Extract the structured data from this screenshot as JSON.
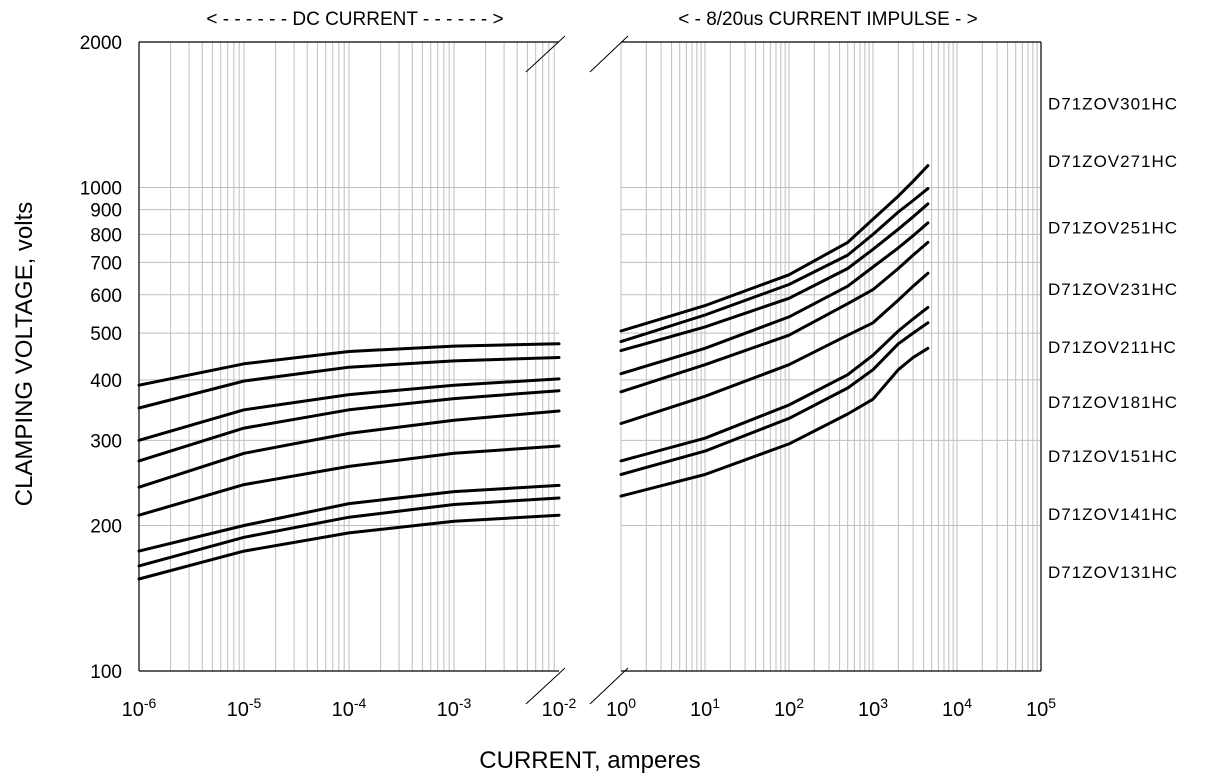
{
  "chart_data": {
    "type": "line",
    "title": "",
    "xlabel": "CURRENT, amperes",
    "ylabel": "CLAMPING VOLTAGE, volts",
    "y_scale": "log",
    "ylim": [
      100,
      2000
    ],
    "y_ticks": [
      {
        "value": 100,
        "label": "100"
      },
      {
        "value": 200,
        "label": "200"
      },
      {
        "value": 300,
        "label": "300"
      },
      {
        "value": 400,
        "label": "400"
      },
      {
        "value": 500,
        "label": "500"
      },
      {
        "value": 600,
        "label": "600"
      },
      {
        "value": 700,
        "label": "700"
      },
      {
        "value": 800,
        "label": "800"
      },
      {
        "value": 900,
        "label": "900"
      },
      {
        "value": 1000,
        "label": "1000"
      },
      {
        "value": 2000,
        "label": "2000"
      }
    ],
    "sections": [
      {
        "name": "DC CURRENT",
        "header": "< - - - - - - DC CURRENT - - - - - - >",
        "x_scale": "log",
        "xlim": [
          1e-06,
          0.01
        ],
        "x_ticks": [
          {
            "value": 1e-06,
            "base": "10",
            "exp": "-6"
          },
          {
            "value": 1e-05,
            "base": "10",
            "exp": "-5"
          },
          {
            "value": 0.0001,
            "base": "10",
            "exp": "-4"
          },
          {
            "value": 0.001,
            "base": "10",
            "exp": "-3"
          },
          {
            "value": 0.01,
            "base": "10",
            "exp": "-2"
          }
        ]
      },
      {
        "name": "8/20us CURRENT IMPULSE",
        "header": "< - 8/20us CURRENT IMPULSE - >",
        "x_scale": "log",
        "xlim": [
          1,
          100000
        ],
        "x_ticks": [
          {
            "value": 1,
            "base": "10",
            "exp": "0"
          },
          {
            "value": 10,
            "base": "10",
            "exp": "1"
          },
          {
            "value": 100,
            "base": "10",
            "exp": "2"
          },
          {
            "value": 1000,
            "base": "10",
            "exp": "3"
          },
          {
            "value": 10000,
            "base": "10",
            "exp": "4"
          },
          {
            "value": 100000,
            "base": "10",
            "exp": "5"
          }
        ]
      }
    ],
    "series": [
      {
        "name": "D71ZOV301HC",
        "label_voltage": 1500,
        "dc": {
          "x": [
            1e-06,
            1e-05,
            0.0001,
            0.001,
            0.01
          ],
          "y": [
            390,
            432,
            458,
            470,
            475
          ]
        },
        "impulse": {
          "x": [
            1,
            10,
            100,
            500,
            1000,
            2000,
            3000,
            4500
          ],
          "y": [
            505,
            570,
            660,
            770,
            860,
            960,
            1030,
            1110
          ]
        }
      },
      {
        "name": "D71ZOV271HC",
        "label_voltage": 1140,
        "dc": {
          "x": [
            1e-06,
            1e-05,
            0.0001,
            0.001,
            0.01
          ],
          "y": [
            350,
            398,
            425,
            438,
            445
          ]
        },
        "impulse": {
          "x": [
            1,
            10,
            100,
            500,
            1000,
            2000,
            3000,
            4500
          ],
          "y": [
            480,
            545,
            630,
            725,
            800,
            890,
            940,
            995
          ]
        }
      },
      {
        "name": "D71ZOV251HC",
        "label_voltage": 830,
        "dc": {
          "x": [
            1e-06,
            1e-05,
            0.0001,
            0.001,
            0.01
          ],
          "y": [
            300,
            347,
            373,
            390,
            402
          ]
        },
        "impulse": {
          "x": [
            1,
            10,
            100,
            500,
            1000,
            2000,
            3000,
            4500
          ],
          "y": [
            460,
            515,
            590,
            680,
            745,
            820,
            870,
            925
          ]
        }
      },
      {
        "name": "D71ZOV231HC",
        "label_voltage": 620,
        "dc": {
          "x": [
            1e-06,
            1e-05,
            0.0001,
            0.001,
            0.01
          ],
          "y": [
            272,
            318,
            347,
            366,
            380
          ]
        },
        "impulse": {
          "x": [
            1,
            10,
            100,
            500,
            1000,
            2000,
            3000,
            4500
          ],
          "y": [
            412,
            465,
            540,
            625,
            685,
            750,
            795,
            845
          ]
        }
      },
      {
        "name": "D71ZOV211HC",
        "label_voltage": 470,
        "dc": {
          "x": [
            1e-06,
            1e-05,
            0.0001,
            0.001,
            0.01
          ],
          "y": [
            240,
            282,
            310,
            330,
            345
          ]
        },
        "impulse": {
          "x": [
            1,
            10,
            100,
            500,
            1000,
            2000,
            3000,
            4500
          ],
          "y": [
            378,
            430,
            495,
            575,
            615,
            680,
            725,
            770
          ]
        }
      },
      {
        "name": "D71ZOV181HC",
        "label_voltage": 362,
        "dc": {
          "x": [
            1e-06,
            1e-05,
            0.0001,
            0.001,
            0.01
          ],
          "y": [
            210,
            243,
            265,
            282,
            292
          ]
        },
        "impulse": {
          "x": [
            1,
            10,
            100,
            500,
            1000,
            2000,
            3000,
            4500
          ],
          "y": [
            325,
            370,
            430,
            495,
            525,
            585,
            625,
            665
          ]
        }
      },
      {
        "name": "D71ZOV151HC",
        "label_voltage": 280,
        "dc": {
          "x": [
            1e-06,
            1e-05,
            0.0001,
            0.001,
            0.01
          ],
          "y": [
            177,
            200,
            222,
            235,
            242
          ]
        },
        "impulse": {
          "x": [
            1,
            10,
            100,
            500,
            1000,
            2000,
            3000,
            4500
          ],
          "y": [
            272,
            303,
            355,
            410,
            450,
            505,
            535,
            565
          ]
        }
      },
      {
        "name": "D71ZOV141HC",
        "label_voltage": 212,
        "dc": {
          "x": [
            1e-06,
            1e-05,
            0.0001,
            0.001,
            0.01
          ],
          "y": [
            165,
            189,
            208,
            221,
            228
          ]
        },
        "impulse": {
          "x": [
            1,
            10,
            100,
            500,
            1000,
            2000,
            3000,
            4500
          ],
          "y": [
            255,
            285,
            333,
            385,
            420,
            475,
            500,
            525
          ]
        }
      },
      {
        "name": "D71ZOV131HC",
        "label_voltage": 161,
        "dc": {
          "x": [
            1e-06,
            1e-05,
            0.0001,
            0.001,
            0.01
          ],
          "y": [
            155,
            177,
            193,
            204,
            210
          ]
        },
        "impulse": {
          "x": [
            1,
            10,
            100,
            500,
            1000,
            2000,
            3000,
            4500
          ],
          "y": [
            230,
            255,
            295,
            340,
            365,
            420,
            445,
            465
          ]
        }
      }
    ],
    "grid": true,
    "legend": "right",
    "line_color": "#000000",
    "grid_color": "#bfbfbf"
  }
}
